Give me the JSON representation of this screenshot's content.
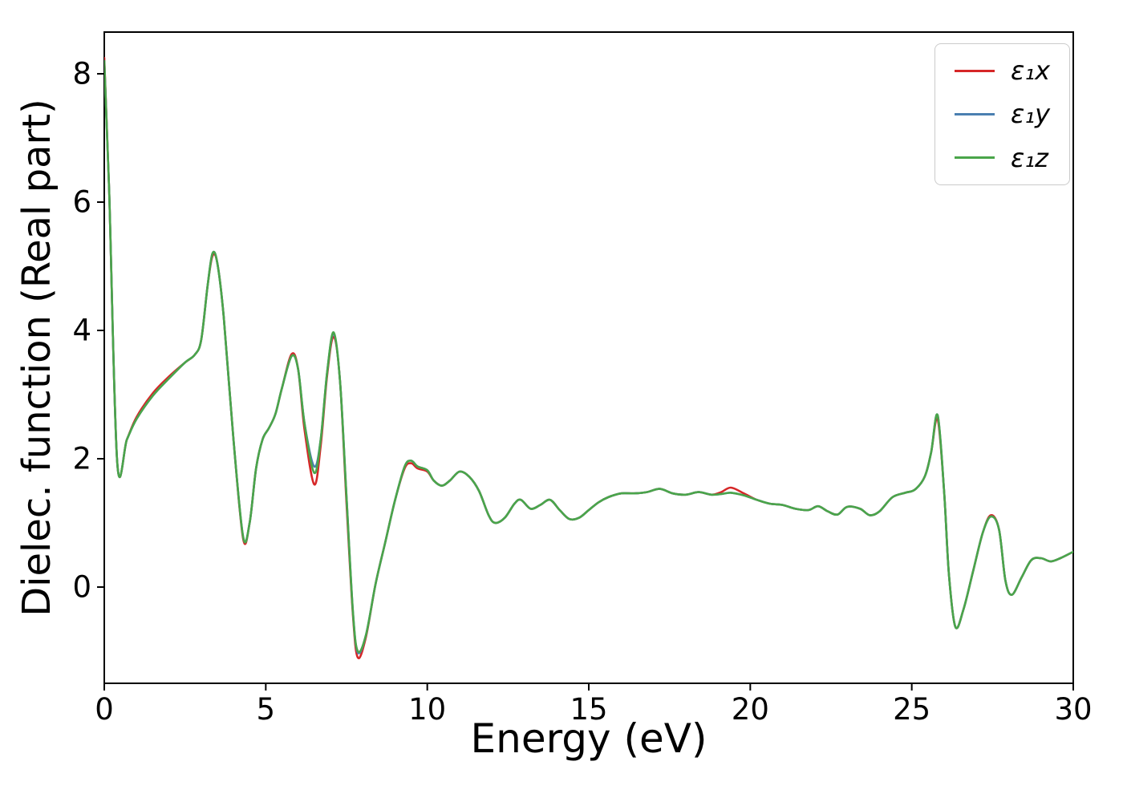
{
  "figure": {
    "background": "#ffffff"
  },
  "chart_data": {
    "type": "line",
    "title": "",
    "xlabel": "Energy (eV)",
    "ylabel": "Dielec. function (Real part)",
    "xlim": [
      0,
      30
    ],
    "ylim": [
      -1.5,
      8.65
    ],
    "xticks": [
      0,
      5,
      10,
      15,
      20,
      25,
      30
    ],
    "yticks": [
      0,
      2,
      4,
      6,
      8
    ],
    "grid": false,
    "legend": {
      "position": "upper right"
    },
    "axis_color": "#000000",
    "x": [
      0,
      0.15,
      0.4,
      0.7,
      1.0,
      1.5,
      2.0,
      2.5,
      2.8,
      3.0,
      3.2,
      3.35,
      3.5,
      3.7,
      4.0,
      4.3,
      4.5,
      4.7,
      4.9,
      5.1,
      5.3,
      5.5,
      5.8,
      6.0,
      6.2,
      6.5,
      6.7,
      6.9,
      7.1,
      7.3,
      7.5,
      7.7,
      7.85,
      8.1,
      8.4,
      8.7,
      9.0,
      9.3,
      9.5,
      9.7,
      10.0,
      10.2,
      10.45,
      10.7,
      11.0,
      11.3,
      11.6,
      11.9,
      12.1,
      12.4,
      12.7,
      12.9,
      13.2,
      13.5,
      13.8,
      14.1,
      14.4,
      14.7,
      15.0,
      15.3,
      15.6,
      16.0,
      16.4,
      16.8,
      17.2,
      17.6,
      18.0,
      18.4,
      18.8,
      19.1,
      19.4,
      19.8,
      20.2,
      20.6,
      21.0,
      21.4,
      21.8,
      22.1,
      22.4,
      22.7,
      23.0,
      23.4,
      23.7,
      24.0,
      24.4,
      24.8,
      25.1,
      25.4,
      25.6,
      25.8,
      26.0,
      26.15,
      26.35,
      26.6,
      26.9,
      27.2,
      27.45,
      27.7,
      27.9,
      28.1,
      28.4,
      28.7,
      29.0,
      29.3,
      29.6,
      30.0
    ],
    "series": [
      {
        "name": "epsilon1x",
        "label": "ε₁x",
        "color": "#d62728",
        "values": [
          8.25,
          6.2,
          1.95,
          2.3,
          2.65,
          3.02,
          3.28,
          3.5,
          3.62,
          3.85,
          4.7,
          5.16,
          5.05,
          4.2,
          2.3,
          0.75,
          1.0,
          1.85,
          2.3,
          2.48,
          2.7,
          3.1,
          3.63,
          3.4,
          2.45,
          1.6,
          2.2,
          3.3,
          3.9,
          3.2,
          1.3,
          -0.45,
          -1.1,
          -0.78,
          0.05,
          0.7,
          1.35,
          1.85,
          1.93,
          1.85,
          1.8,
          1.66,
          1.58,
          1.66,
          1.8,
          1.72,
          1.5,
          1.12,
          1.0,
          1.08,
          1.3,
          1.36,
          1.22,
          1.28,
          1.36,
          1.2,
          1.06,
          1.08,
          1.2,
          1.32,
          1.4,
          1.46,
          1.46,
          1.48,
          1.53,
          1.46,
          1.44,
          1.48,
          1.44,
          1.48,
          1.55,
          1.46,
          1.36,
          1.3,
          1.28,
          1.22,
          1.2,
          1.26,
          1.18,
          1.13,
          1.25,
          1.22,
          1.12,
          1.18,
          1.4,
          1.47,
          1.52,
          1.72,
          2.1,
          2.62,
          1.5,
          0.2,
          -0.62,
          -0.35,
          0.25,
          0.85,
          1.12,
          0.9,
          0.1,
          -0.12,
          0.15,
          0.42,
          0.45,
          0.4,
          0.45,
          0.55
        ]
      },
      {
        "name": "epsilon1y",
        "label": "ε₁y",
        "color": "#4a7fb0",
        "values": [
          8.2,
          6.2,
          1.95,
          2.3,
          2.62,
          2.98,
          3.25,
          3.5,
          3.62,
          3.85,
          4.7,
          5.2,
          5.05,
          4.2,
          2.3,
          0.78,
          1.0,
          1.85,
          2.3,
          2.48,
          2.7,
          3.1,
          3.6,
          3.4,
          2.55,
          1.88,
          2.3,
          3.35,
          3.95,
          3.2,
          1.4,
          -0.4,
          -1.02,
          -0.75,
          0.05,
          0.7,
          1.35,
          1.88,
          1.97,
          1.88,
          1.82,
          1.66,
          1.58,
          1.66,
          1.8,
          1.72,
          1.5,
          1.12,
          1.0,
          1.08,
          1.3,
          1.36,
          1.22,
          1.28,
          1.36,
          1.2,
          1.06,
          1.08,
          1.2,
          1.32,
          1.4,
          1.46,
          1.46,
          1.48,
          1.53,
          1.46,
          1.44,
          1.48,
          1.44,
          1.45,
          1.47,
          1.43,
          1.36,
          1.3,
          1.28,
          1.22,
          1.2,
          1.26,
          1.18,
          1.13,
          1.25,
          1.22,
          1.12,
          1.18,
          1.4,
          1.47,
          1.52,
          1.72,
          2.1,
          2.68,
          1.5,
          0.2,
          -0.62,
          -0.35,
          0.25,
          0.85,
          1.1,
          0.9,
          0.1,
          -0.12,
          0.15,
          0.42,
          0.45,
          0.4,
          0.45,
          0.55
        ]
      },
      {
        "name": "epsilon1z",
        "label": "ε₁z",
        "color": "#4aa54a",
        "values": [
          8.2,
          6.2,
          1.95,
          2.3,
          2.62,
          2.98,
          3.25,
          3.5,
          3.62,
          3.85,
          4.7,
          5.2,
          5.05,
          4.2,
          2.3,
          0.78,
          1.0,
          1.85,
          2.3,
          2.48,
          2.7,
          3.1,
          3.6,
          3.4,
          2.55,
          1.78,
          2.3,
          3.35,
          3.97,
          3.2,
          1.4,
          -0.4,
          -1.0,
          -0.75,
          0.05,
          0.7,
          1.35,
          1.88,
          1.97,
          1.88,
          1.82,
          1.66,
          1.58,
          1.66,
          1.8,
          1.72,
          1.5,
          1.12,
          1.0,
          1.08,
          1.3,
          1.36,
          1.22,
          1.28,
          1.36,
          1.2,
          1.06,
          1.08,
          1.2,
          1.32,
          1.4,
          1.46,
          1.46,
          1.48,
          1.53,
          1.46,
          1.44,
          1.48,
          1.44,
          1.45,
          1.47,
          1.43,
          1.36,
          1.3,
          1.28,
          1.22,
          1.2,
          1.26,
          1.18,
          1.13,
          1.25,
          1.22,
          1.12,
          1.18,
          1.4,
          1.47,
          1.52,
          1.72,
          2.1,
          2.68,
          1.5,
          0.2,
          -0.62,
          -0.35,
          0.25,
          0.85,
          1.1,
          0.9,
          0.1,
          -0.12,
          0.15,
          0.42,
          0.45,
          0.4,
          0.45,
          0.55
        ]
      }
    ]
  }
}
